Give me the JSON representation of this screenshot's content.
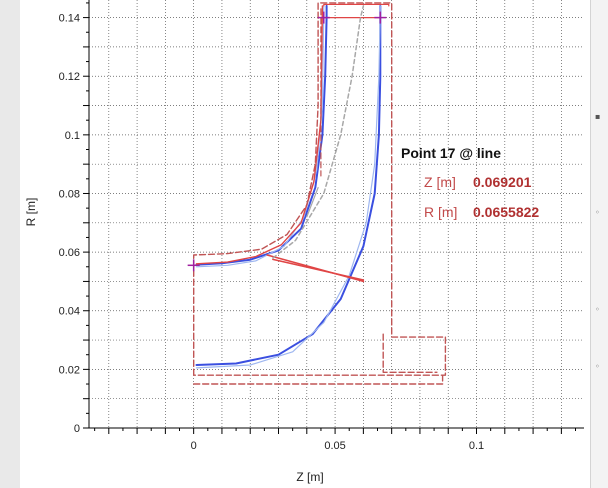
{
  "colors": {
    "blue": "#3a4fe0",
    "light_blue": "#9fb7f0",
    "red": "#e04545",
    "dashed_red": "#c05555",
    "gray": "#a8a8a8",
    "marker": "#a020a0",
    "grid": "#555555"
  },
  "info_box": {
    "title": "Point 17 @ line",
    "z_label": "Z [m]",
    "z_value": "0.069201",
    "r_label": "R [m]",
    "r_value": "0.0655822"
  },
  "chart_data": {
    "type": "line",
    "xlabel": "Z [m]",
    "ylabel": "R [m]",
    "xlim": [
      -0.037,
      0.138
    ],
    "ylim": [
      0,
      0.146
    ],
    "x_ticks": [
      0,
      0.05,
      0.1
    ],
    "x_tick_labels": [
      "0",
      "0.05",
      "0.1"
    ],
    "y_ticks": [
      0,
      0.02,
      0.04,
      0.06,
      0.08,
      0.1,
      0.12,
      0.14
    ],
    "y_tick_labels": [
      "0",
      "0.02",
      "0.04",
      "0.06",
      "0.08",
      "0.1",
      "0.12",
      "0.14"
    ],
    "grid": true,
    "series": [
      {
        "color": "blue",
        "width": 2,
        "points": [
          [
            0.001,
            0.0557
          ],
          [
            0.01,
            0.0562
          ],
          [
            0.02,
            0.0574
          ],
          [
            0.03,
            0.0606
          ],
          [
            0.038,
            0.068
          ],
          [
            0.043,
            0.082
          ],
          [
            0.0455,
            0.1
          ],
          [
            0.0465,
            0.12
          ],
          [
            0.047,
            0.14
          ],
          [
            0.047,
            0.144
          ]
        ]
      },
      {
        "color": "blue",
        "width": 2,
        "points": [
          [
            0.001,
            0.0215
          ],
          [
            0.015,
            0.022
          ],
          [
            0.03,
            0.025
          ],
          [
            0.042,
            0.032
          ],
          [
            0.052,
            0.044
          ],
          [
            0.06,
            0.062
          ],
          [
            0.064,
            0.08
          ],
          [
            0.0655,
            0.1
          ],
          [
            0.066,
            0.12
          ],
          [
            0.066,
            0.144
          ]
        ]
      },
      {
        "color": "light_blue",
        "width": 1.2,
        "points": [
          [
            0.001,
            0.055
          ],
          [
            0.012,
            0.0555
          ],
          [
            0.022,
            0.057
          ],
          [
            0.032,
            0.062
          ],
          [
            0.039,
            0.072
          ],
          [
            0.0435,
            0.088
          ],
          [
            0.0455,
            0.11
          ],
          [
            0.046,
            0.144
          ]
        ]
      },
      {
        "color": "light_blue",
        "width": 1.2,
        "points": [
          [
            0.001,
            0.0205
          ],
          [
            0.02,
            0.0215
          ],
          [
            0.035,
            0.026
          ],
          [
            0.046,
            0.036
          ],
          [
            0.055,
            0.052
          ],
          [
            0.061,
            0.07
          ],
          [
            0.064,
            0.09
          ],
          [
            0.0655,
            0.12
          ],
          [
            0.066,
            0.144
          ]
        ]
      },
      {
        "color": "red",
        "width": 1.4,
        "points": [
          [
            0.001,
            0.056
          ],
          [
            0.012,
            0.0566
          ],
          [
            0.022,
            0.0585
          ],
          [
            0.031,
            0.0625
          ],
          [
            0.038,
            0.07
          ],
          [
            0.0425,
            0.084
          ],
          [
            0.045,
            0.105
          ],
          [
            0.0455,
            0.144
          ]
        ]
      },
      {
        "color": "red",
        "width": 1.2,
        "points": [
          [
            0.046,
            0.144
          ],
          [
            0.046,
            0.1445
          ],
          [
            0.069,
            0.1445
          ],
          [
            0.069,
            0.144
          ]
        ]
      },
      {
        "color": "red",
        "width": 1.2,
        "points": [
          [
            0.046,
            0.14
          ],
          [
            0.066,
            0.14
          ]
        ]
      },
      {
        "color": "red",
        "width": 1.6,
        "points": [
          [
            0.026,
            0.059
          ],
          [
            0.06,
            0.05
          ]
        ]
      },
      {
        "color": "red",
        "width": 1.6,
        "points": [
          [
            0.028,
            0.0575
          ],
          [
            0.06,
            0.0505
          ]
        ]
      },
      {
        "color": "gray",
        "width": 1.5,
        "dash": "4,3",
        "points": [
          [
            0.028,
            0.058
          ],
          [
            0.036,
            0.064
          ],
          [
            0.046,
            0.08
          ],
          [
            0.052,
            0.1
          ],
          [
            0.056,
            0.12
          ],
          [
            0.059,
            0.14
          ],
          [
            0.06,
            0.144
          ]
        ]
      },
      {
        "color": "gray",
        "width": 1.2,
        "points": [
          [
            0.04,
            0.072
          ],
          [
            0.044,
            0.082
          ]
        ]
      },
      {
        "color": "dashed_red",
        "width": 1.4,
        "dash": "6,3",
        "points": [
          [
            0.0,
            0.018
          ],
          [
            0.0,
            0.059
          ],
          [
            0.012,
            0.0595
          ],
          [
            0.024,
            0.061
          ],
          [
            0.033,
            0.066
          ],
          [
            0.04,
            0.076
          ],
          [
            0.043,
            0.09
          ],
          [
            0.044,
            0.11
          ],
          [
            0.044,
            0.145
          ],
          [
            0.07,
            0.145
          ],
          [
            0.07,
            0.031
          ],
          [
            0.089,
            0.031
          ],
          [
            0.089,
            0.018
          ],
          [
            0.0,
            0.018
          ]
        ]
      },
      {
        "color": "dashed_red",
        "width": 1.4,
        "dash": "6,3",
        "points": [
          [
            0.0,
            0.015
          ],
          [
            0.088,
            0.015
          ],
          [
            0.088,
            0.018
          ]
        ]
      },
      {
        "color": "dashed_red",
        "width": 1.4,
        "dash": "6,3",
        "points": [
          [
            0.067,
            0.032
          ],
          [
            0.067,
            0.019
          ],
          [
            0.086,
            0.019
          ]
        ]
      },
      {
        "color": "dashed_red",
        "width": 1.2,
        "dash": "6,3",
        "points": [
          [
            0.045,
            0.143
          ],
          [
            0.045,
            0.086
          ]
        ]
      }
    ],
    "markers": [
      {
        "x": 0.0,
        "y": 0.0555
      },
      {
        "x": 0.046,
        "y": 0.14
      },
      {
        "x": 0.066,
        "y": 0.14
      }
    ]
  }
}
